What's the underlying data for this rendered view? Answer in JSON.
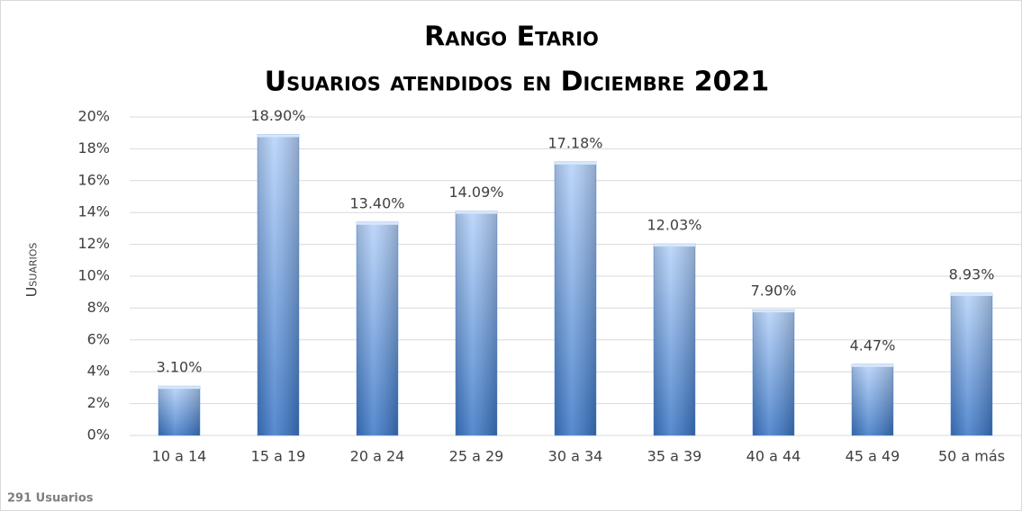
{
  "chart_data": {
    "type": "bar",
    "title": "Rango Etario",
    "subtitle": "Usuarios atendidos en Diciembre 2021",
    "y_label": "Usuarios",
    "annotation": "291 Usuarios",
    "categories": [
      "10 a 14",
      "15 a 19",
      "20 a 24",
      "25 a 29",
      "30 a 34",
      "35 a 39",
      "40 a 44",
      "45 a 49",
      "50 a más"
    ],
    "values": [
      3.1,
      18.9,
      13.4,
      14.09,
      17.18,
      12.03,
      7.9,
      4.47,
      8.93
    ],
    "value_labels": [
      "3.10%",
      "18.90%",
      "13.40%",
      "14.09%",
      "17.18%",
      "12.03%",
      "7.90%",
      "4.47%",
      "8.93%"
    ],
    "color": "#5b93e0",
    "ylim": [
      0,
      20
    ],
    "yticks": [
      {
        "value": 0,
        "label": "0%"
      },
      {
        "value": 2,
        "label": "2%"
      },
      {
        "value": 4,
        "label": "4%"
      },
      {
        "value": 6,
        "label": "6%"
      },
      {
        "value": 8,
        "label": "8%"
      },
      {
        "value": 10,
        "label": "10%"
      },
      {
        "value": 12,
        "label": "12%"
      },
      {
        "value": 14,
        "label": "14%"
      },
      {
        "value": 16,
        "label": "16%"
      },
      {
        "value": 18,
        "label": "18%"
      },
      {
        "value": 20,
        "label": "20%"
      }
    ],
    "grid": true
  }
}
